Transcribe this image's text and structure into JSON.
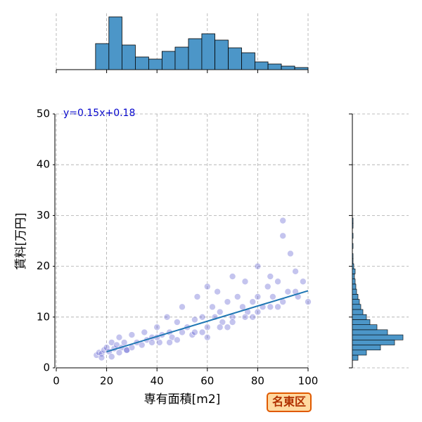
{
  "chart_data": [
    {
      "type": "scatter",
      "annotation": "y=0.15x+0.18",
      "badge": "名東区",
      "xlabel": "専有面積[m2]",
      "ylabel": "賃料[万円]",
      "xlim": [
        0,
        100
      ],
      "ylim": [
        0,
        50
      ],
      "xticks": [
        0,
        20,
        40,
        60,
        80,
        100
      ],
      "yticks": [
        0,
        10,
        20,
        30,
        40,
        50
      ],
      "grid": true,
      "color": "#3a3ac8",
      "line_color": "#1f77b4",
      "regression": {
        "slope": 0.15,
        "intercept": 0.18,
        "x": [
          20,
          100
        ]
      },
      "x": [
        16,
        17,
        18,
        19,
        20,
        21,
        22,
        23,
        24,
        25,
        26,
        27,
        28,
        30,
        32,
        34,
        35,
        36,
        38,
        40,
        41,
        42,
        44,
        45,
        46,
        48,
        50,
        50,
        52,
        54,
        55,
        56,
        58,
        60,
        60,
        62,
        63,
        64,
        65,
        66,
        68,
        70,
        70,
        72,
        74,
        75,
        76,
        78,
        80,
        80,
        82,
        84,
        85,
        86,
        88,
        90,
        90,
        92,
        95,
        98,
        100,
        22,
        25,
        30,
        40,
        45,
        55,
        60,
        65,
        70,
        75,
        80,
        85,
        90,
        95,
        18,
        28,
        38,
        48,
        58,
        68,
        78,
        88,
        93,
        96
      ],
      "values": [
        2.5,
        3,
        2.8,
        3.5,
        4,
        3.2,
        5,
        3.8,
        4.5,
        6,
        4,
        5,
        3.5,
        6.5,
        5,
        4.5,
        7,
        5.5,
        6,
        8,
        5,
        6.5,
        10,
        7,
        6,
        9,
        12,
        7,
        8,
        6.5,
        9.5,
        14,
        10,
        16,
        8,
        12,
        10,
        15,
        11,
        9,
        13,
        18,
        10,
        14,
        12,
        17,
        11,
        13,
        20,
        14,
        12,
        16,
        18,
        14,
        17,
        29,
        26,
        15,
        19,
        17,
        13,
        2.2,
        3,
        4,
        6,
        5,
        7,
        6,
        8,
        9,
        10,
        11,
        12,
        13,
        15,
        2,
        3.5,
        5,
        5.5,
        7,
        8,
        10,
        12,
        22.5,
        14
      ]
    },
    {
      "type": "histogram",
      "orientation": "vertical",
      "color": "#4c96c8",
      "xlim": [
        0,
        100
      ],
      "xticks": [
        0,
        20,
        40,
        60,
        80,
        100
      ],
      "ylim": [
        0,
        80
      ],
      "grid": true,
      "bins": [
        15.6,
        20.9,
        26.1,
        31.4,
        36.7,
        42,
        47.2,
        52.5,
        57.8,
        63,
        68.3,
        73.6,
        78.9,
        84.1,
        89.4,
        94.7,
        100
      ],
      "values": [
        37,
        75,
        35,
        18,
        15,
        26,
        32,
        44,
        51,
        42,
        31,
        24,
        11,
        8,
        5,
        3
      ]
    },
    {
      "type": "histogram",
      "orientation": "horizontal",
      "color": "#4c96c8",
      "ylim": [
        0,
        50
      ],
      "yticks": [
        0,
        10,
        20,
        30,
        40,
        50
      ],
      "xlim": [
        0,
        80
      ],
      "grid": true,
      "bins": [
        1.5,
        2.5,
        3.5,
        4.5,
        5.5,
        6.5,
        7.5,
        8.5,
        9.5,
        10.5,
        11.5,
        12.5,
        13.5,
        14.5,
        15.5,
        16.5,
        17.5,
        18.5,
        19.5,
        20.5,
        21.5,
        22.5,
        23.5,
        24.5,
        25.5,
        26.5,
        27.5,
        28.5,
        29.5
      ],
      "values": [
        8,
        20,
        40,
        60,
        72,
        50,
        35,
        25,
        20,
        15,
        12,
        10,
        8,
        6,
        5,
        4,
        3,
        4,
        2,
        1,
        1,
        0,
        1,
        0,
        1,
        0,
        1,
        1
      ]
    }
  ]
}
